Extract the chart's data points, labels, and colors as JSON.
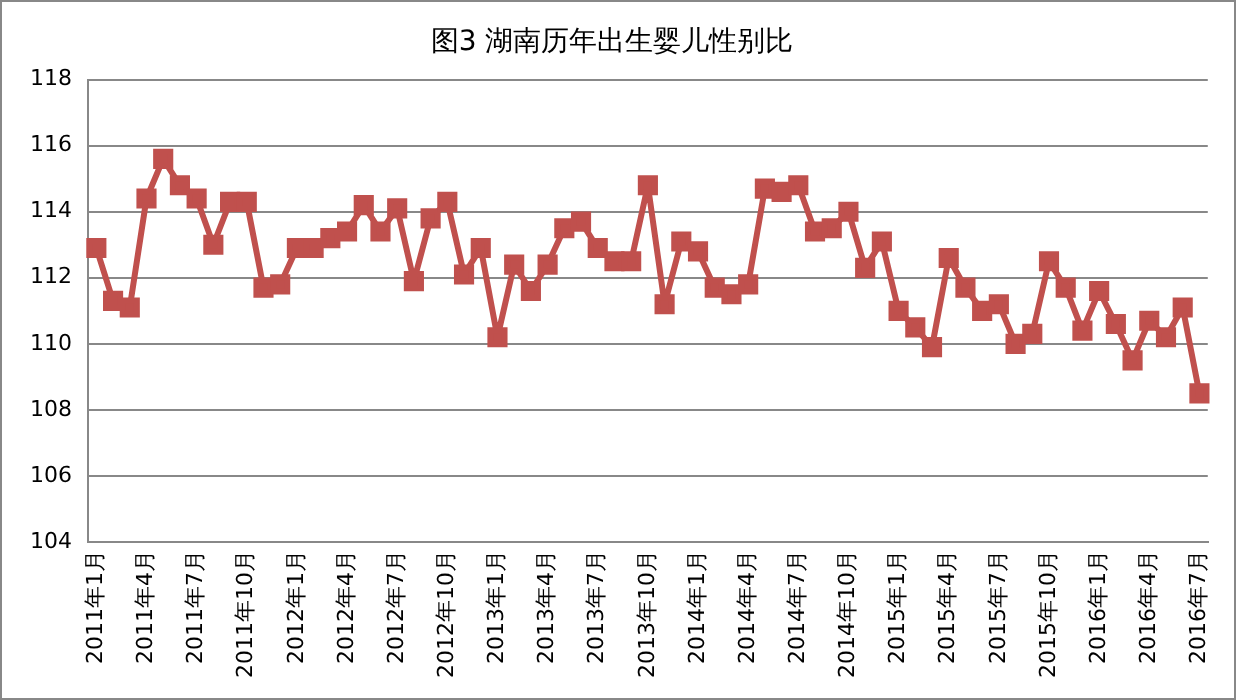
{
  "chart_data": {
    "type": "line",
    "title": "图3 湖南历年出生婴儿性别比",
    "categories": [
      "2011年1月",
      null,
      null,
      "2011年4月",
      null,
      null,
      "2011年7月",
      null,
      null,
      "2011年10月",
      null,
      null,
      "2012年1月",
      null,
      null,
      "2012年4月",
      null,
      null,
      "2012年7月",
      null,
      null,
      "2012年10月",
      null,
      null,
      "2013年1月",
      null,
      null,
      "2013年4月",
      null,
      null,
      "2013年7月",
      null,
      null,
      "2013年10月",
      null,
      null,
      "2014年1月",
      null,
      null,
      "2014年4月",
      null,
      null,
      "2014年7月",
      null,
      null,
      "2014年10月",
      null,
      null,
      "2015年1月",
      null,
      null,
      "2015年4月",
      null,
      null,
      "2015年7月",
      null,
      null,
      "2015年10月",
      null,
      null,
      "2016年1月",
      null,
      null,
      "2016年4月",
      null,
      null,
      "2016年7月"
    ],
    "series": [
      {
        "color": "#c0504d",
        "values": [
          112.9,
          111.3,
          111.1,
          114.4,
          115.6,
          114.8,
          114.4,
          113.0,
          114.3,
          114.3,
          111.7,
          111.8,
          112.9,
          112.9,
          113.2,
          113.4,
          114.2,
          113.4,
          114.1,
          111.9,
          113.8,
          114.3,
          112.1,
          112.9,
          110.2,
          112.4,
          111.6,
          112.4,
          113.5,
          113.7,
          112.9,
          112.5,
          112.5,
          114.8,
          111.2,
          113.1,
          112.8,
          111.7,
          111.5,
          111.8,
          114.7,
          114.6,
          114.8,
          113.4,
          113.5,
          114.0,
          112.3,
          113.1,
          111.0,
          110.5,
          109.9,
          112.6,
          111.7,
          111.0,
          111.2,
          110.0,
          110.3,
          112.5,
          111.7,
          110.4,
          111.6,
          110.6,
          109.5,
          110.7,
          110.2,
          111.1,
          108.5
        ]
      }
    ],
    "ylim": [
      104,
      118
    ],
    "yticks": [
      104,
      106,
      108,
      110,
      112,
      114,
      116,
      118
    ],
    "grid": "y",
    "legend": false,
    "marker": "square",
    "line_style": "solid"
  }
}
